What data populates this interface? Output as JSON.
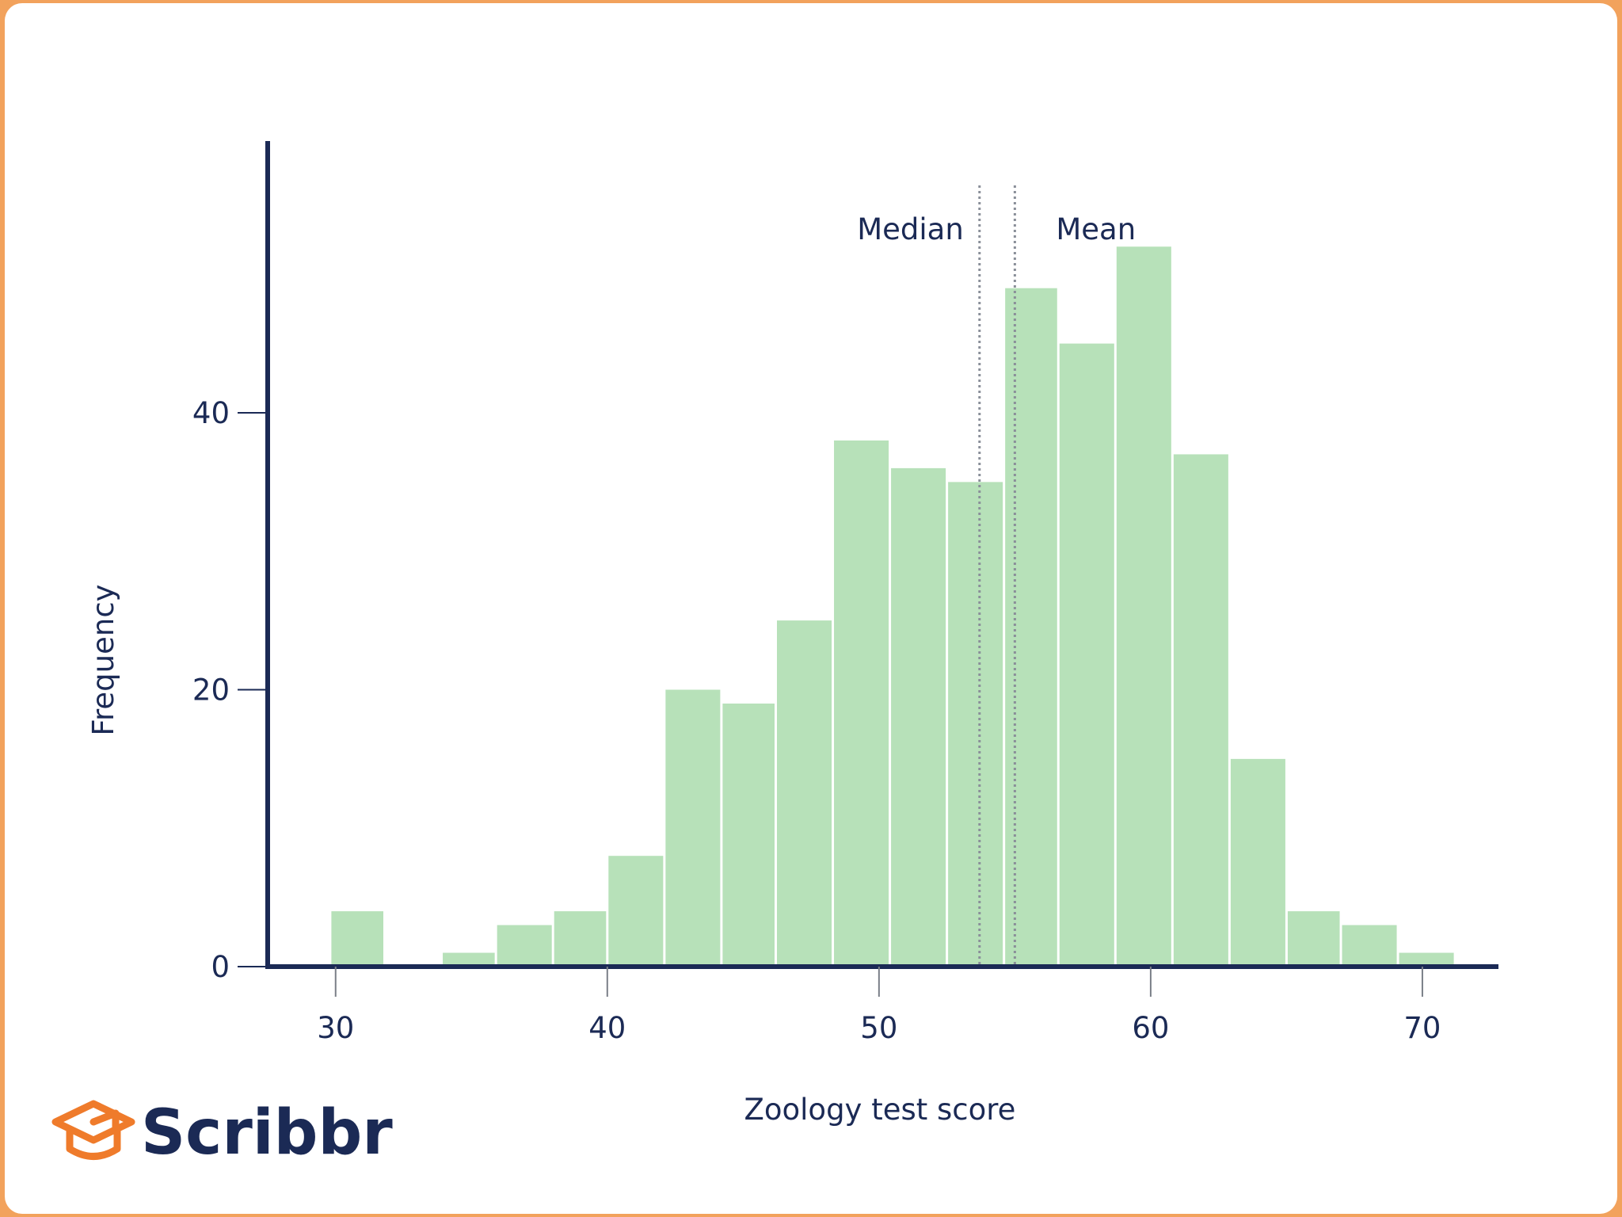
{
  "colors": {
    "bar": "#b7e1b9",
    "axis": "#1b2a55",
    "reference_line": "#8a8f99",
    "logo_accent": "#ef7b2b",
    "frame": "#f2a25c"
  },
  "brand": {
    "logo_text": "Scribbr",
    "icon": "graduation-cap-icon"
  },
  "chart_data": {
    "type": "bar",
    "subtype": "histogram",
    "title": "",
    "xlabel": "Zoology test score",
    "ylabel": "Frequency",
    "bin_width": 2,
    "bins": [
      {
        "start": 29.8,
        "end": 31.8,
        "count": 4
      },
      {
        "start": 33.9,
        "end": 35.9,
        "count": 1
      },
      {
        "start": 35.9,
        "end": 38.0,
        "count": 3
      },
      {
        "start": 38.0,
        "end": 40.0,
        "count": 4
      },
      {
        "start": 40.0,
        "end": 42.1,
        "count": 8
      },
      {
        "start": 42.1,
        "end": 44.2,
        "count": 20
      },
      {
        "start": 44.2,
        "end": 46.2,
        "count": 19
      },
      {
        "start": 46.2,
        "end": 48.3,
        "count": 25
      },
      {
        "start": 48.3,
        "end": 50.4,
        "count": 38
      },
      {
        "start": 50.4,
        "end": 52.5,
        "count": 36
      },
      {
        "start": 52.5,
        "end": 54.6,
        "count": 35
      },
      {
        "start": 54.6,
        "end": 56.6,
        "count": 49
      },
      {
        "start": 56.6,
        "end": 58.7,
        "count": 45
      },
      {
        "start": 58.7,
        "end": 60.8,
        "count": 52
      },
      {
        "start": 60.8,
        "end": 62.9,
        "count": 37
      },
      {
        "start": 62.9,
        "end": 65.0,
        "count": 15
      },
      {
        "start": 65.0,
        "end": 67.0,
        "count": 4
      },
      {
        "start": 67.0,
        "end": 69.1,
        "count": 3
      },
      {
        "start": 69.1,
        "end": 71.2,
        "count": 1
      }
    ],
    "x_ticks": [
      30,
      40,
      50,
      60,
      70
    ],
    "y_ticks": [
      0,
      20,
      40
    ],
    "xlim": [
      27.5,
      72.8
    ],
    "ylim": [
      0,
      61
    ],
    "annotations": [
      {
        "label": "Median",
        "x": 53.7,
        "label_side": "left"
      },
      {
        "label": "Mean",
        "x": 55.0,
        "label_side": "right"
      }
    ],
    "grid": false,
    "legend": "none"
  }
}
